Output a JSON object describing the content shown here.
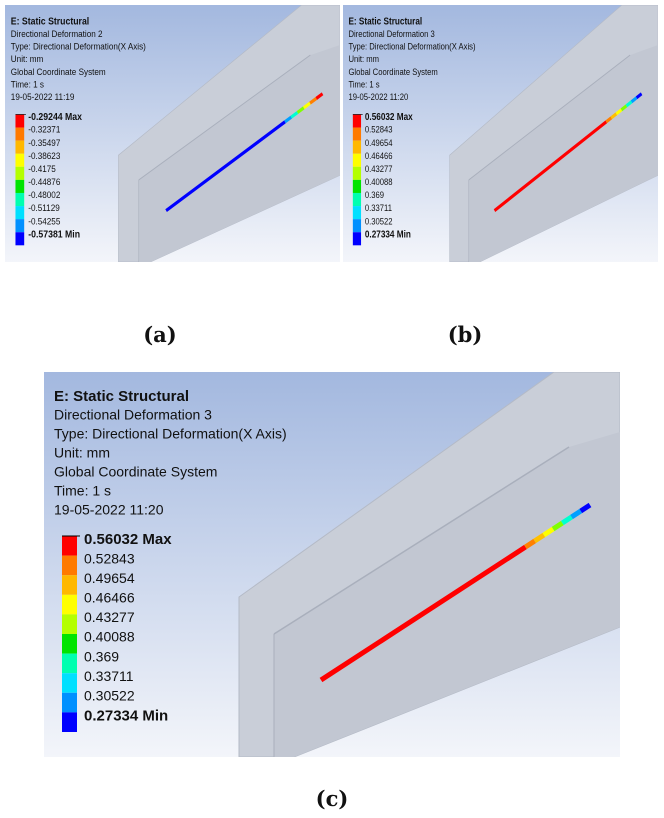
{
  "panels": [
    {
      "header": [
        "E: Static Structural",
        "Directional Deformation 2",
        "Type: Directional Deformation(X Axis)",
        "Unit: mm",
        "Global Coordinate System",
        "Time: 1 s",
        "19-05-2022 11:19"
      ],
      "legend": [
        "-0.29244 Max",
        "-0.32371",
        "-0.35497",
        "-0.38623",
        "-0.4175",
        "-0.44876",
        "-0.48002",
        "-0.51129",
        "-0.54255",
        "-0.57381 Min"
      ],
      "caption": "(a)"
    },
    {
      "header": [
        "E: Static Structural",
        "Directional Deformation 3",
        "Type: Directional Deformation(X Axis)",
        "Unit: mm",
        "Global Coordinate System",
        "Time: 1 s",
        "19-05-2022 11:20"
      ],
      "legend": [
        "0.56032 Max",
        "0.52843",
        "0.49654",
        "0.46466",
        "0.43277",
        "0.40088",
        "0.369",
        "0.33711",
        "0.30522",
        "0.27334 Min"
      ],
      "caption": "(b)"
    },
    {
      "header": [
        "E: Static Structural",
        "Directional Deformation 3",
        "Type: Directional Deformation(X Axis)",
        "Unit: mm",
        "Global Coordinate System",
        "Time: 1 s",
        "19-05-2022 11:20"
      ],
      "legend": [
        "0.56032 Max",
        "0.52843",
        "0.49654",
        "0.46466",
        "0.43277",
        "0.40088",
        "0.369",
        "0.33711",
        "0.30522",
        "0.27334 Min"
      ],
      "caption": "(c)"
    }
  ]
}
